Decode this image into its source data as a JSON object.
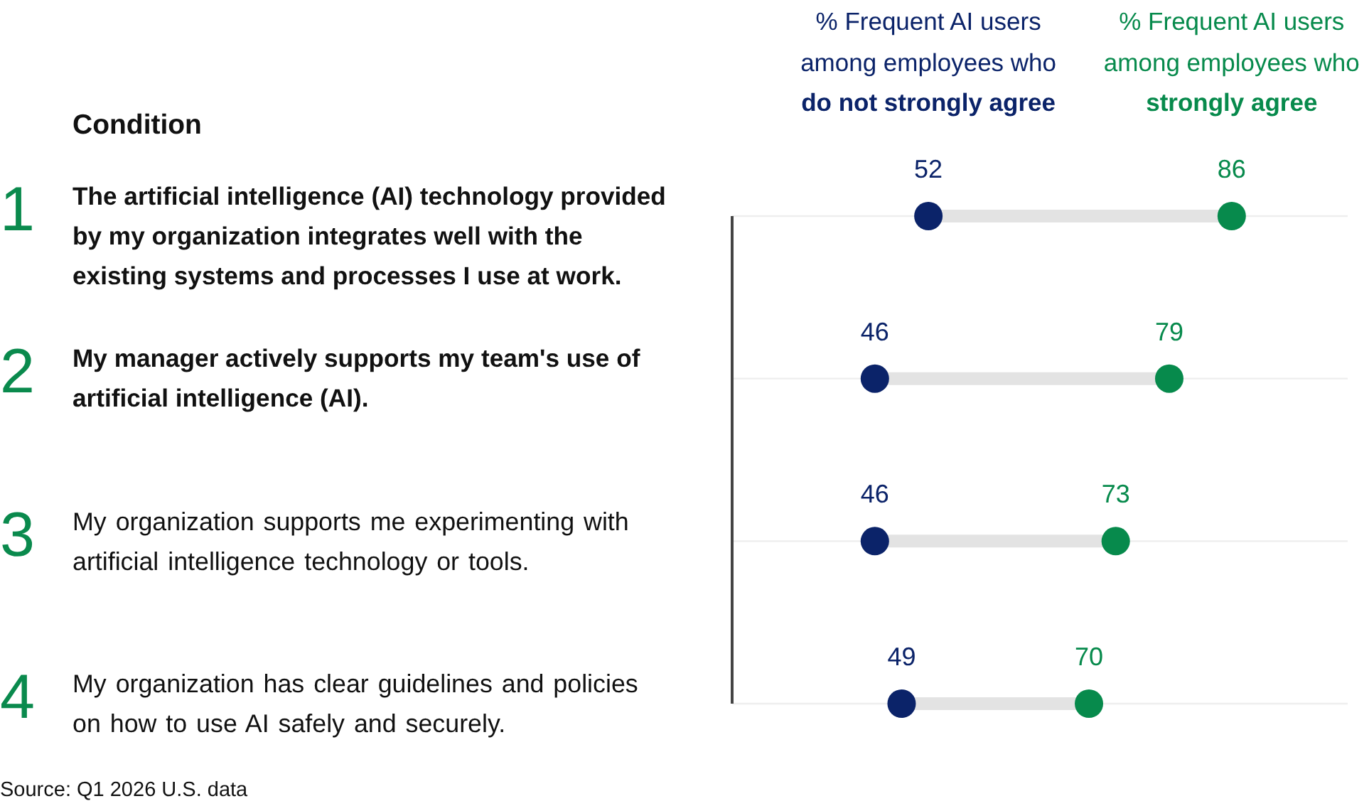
{
  "chart_data": {
    "type": "scatter",
    "ylabel": "Condition",
    "categories": [
      "1 The artificial intelligence (AI) technology provided by my organization integrates well with the existing systems and processes I use at work.",
      "2 My manager actively supports my team's use of artificial intelligence (AI).",
      "3 My organization supports me experimenting with artificial intelligence technology or tools.",
      "4 My organization has clear guidelines and policies on how to use AI safely and securely."
    ],
    "series": [
      {
        "name": "% Frequent AI users among employees who do not strongly agree",
        "color": "#0b2369",
        "values": [
          52,
          46,
          46,
          49
        ]
      },
      {
        "name": "% Frequent AI users among employees who strongly agree",
        "color": "#078a4c",
        "values": [
          86,
          79,
          73,
          70
        ]
      }
    ],
    "orientation": "horizontal",
    "xlim": [
      30,
      99
    ],
    "data_labels": true,
    "grid": "y",
    "legend": "top",
    "marker": "circle",
    "tick_labels": "y",
    "annotations": [
      "Source: Q1 2026 U.S. data"
    ]
  }
}
